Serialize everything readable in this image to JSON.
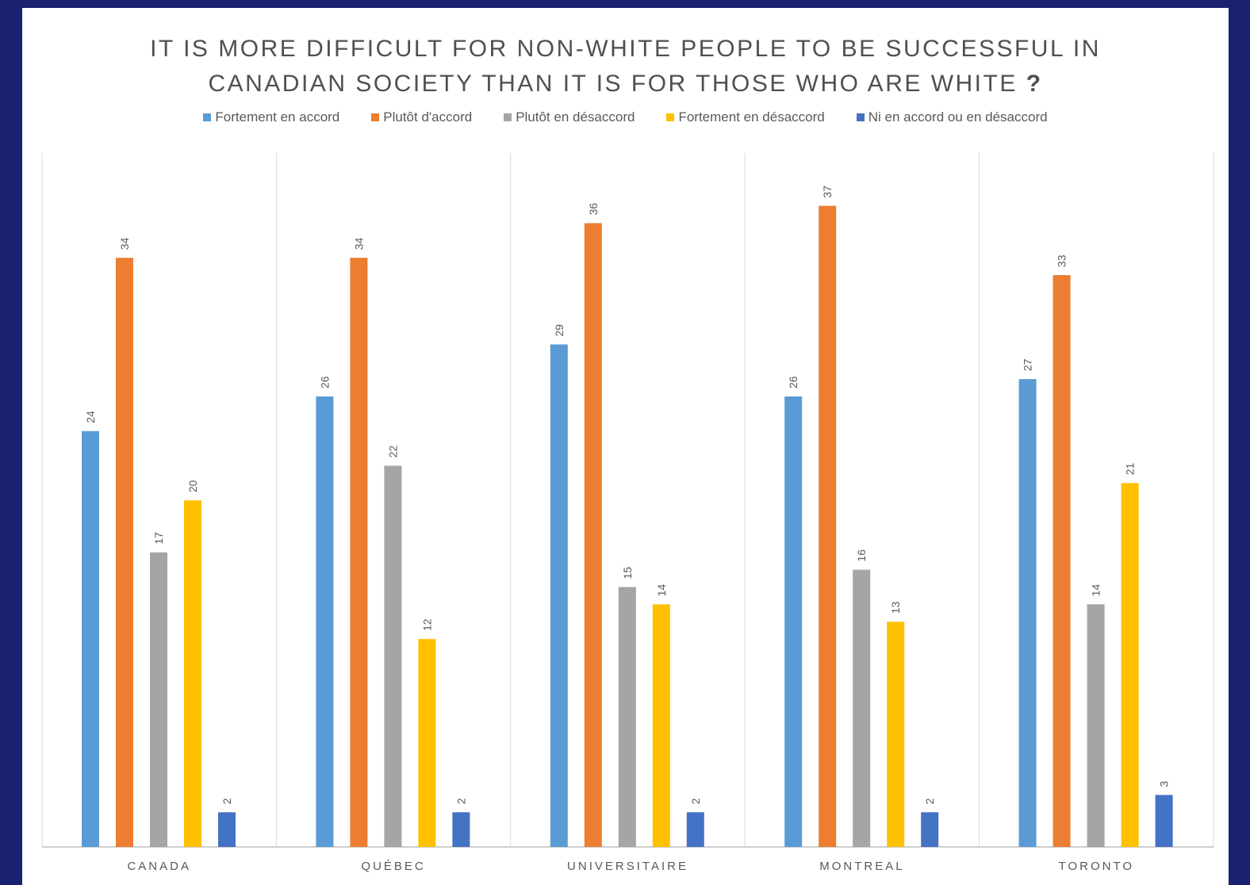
{
  "chart_data": {
    "type": "bar",
    "title_line1": "IT IS MORE DIFFICULT FOR NON-WHITE PEOPLE TO BE SUCCESSFUL IN",
    "title_line2": "CANADIAN SOCIETY THAN IT IS FOR THOSE WHO ARE WHITE",
    "title_mark": "?",
    "categories": [
      "CANADA",
      "QUÉBEC",
      "UNIVERSITAIRE",
      "MONTREAL",
      "TORONTO"
    ],
    "series": [
      {
        "name": "Fortement en accord",
        "color": "#5b9bd5",
        "values": [
          24,
          26,
          29,
          26,
          27
        ]
      },
      {
        "name": "Plutôt d'accord",
        "color": "#ed7d31",
        "values": [
          34,
          34,
          36,
          37,
          33
        ]
      },
      {
        "name": "Plutôt en désaccord",
        "color": "#a5a5a5",
        "values": [
          17,
          22,
          15,
          16,
          14
        ]
      },
      {
        "name": "Fortement en désaccord",
        "color": "#ffc000",
        "values": [
          20,
          12,
          14,
          13,
          21
        ]
      },
      {
        "name": "Ni en accord ou en désaccord",
        "color": "#4472c4",
        "values": [
          2,
          2,
          2,
          2,
          3
        ]
      }
    ],
    "ylim": [
      0,
      40
    ],
    "legend_position": "top",
    "grid": false,
    "data_labels": true
  }
}
